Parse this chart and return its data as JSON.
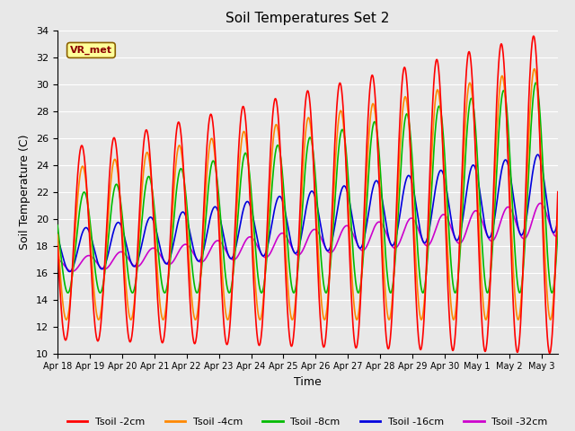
{
  "title": "Soil Temperatures Set 2",
  "xlabel": "Time",
  "ylabel": "Soil Temperature (C)",
  "ylim": [
    10,
    34
  ],
  "yticks": [
    10,
    12,
    14,
    16,
    18,
    20,
    22,
    24,
    26,
    28,
    30,
    32,
    34
  ],
  "xlim_start": 0,
  "xlim_end": 15.5,
  "colors": {
    "Tsoil -2cm": "#ff0000",
    "Tsoil -4cm": "#ff8800",
    "Tsoil -8cm": "#00bb00",
    "Tsoil -16cm": "#0000dd",
    "Tsoil -32cm": "#cc00cc"
  },
  "x_tick_labels": [
    "Apr 18",
    "Apr 19",
    "Apr 20",
    "Apr 21",
    "Apr 22",
    "Apr 23",
    "Apr 24",
    "Apr 25",
    "Apr 26",
    "Apr 27",
    "Apr 28",
    "Apr 29",
    "Apr 30",
    "May 1",
    "May 2",
    "May 3"
  ],
  "annotation_text": "VR_met",
  "plot_bg_color": "#e8e8e8",
  "grid_color": "#ffffff",
  "fig_bg_color": "#e8e8e8",
  "linewidth": 1.2
}
